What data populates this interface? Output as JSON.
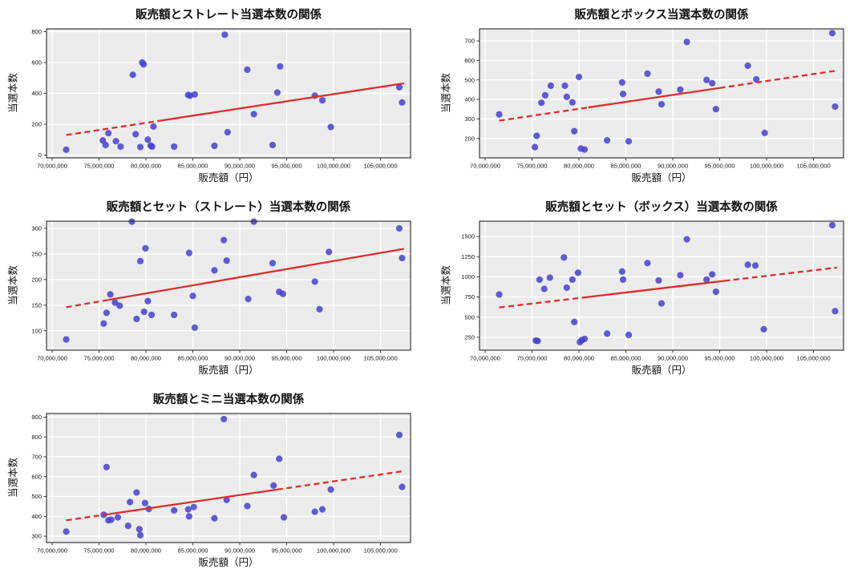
{
  "page": {
    "background": "#ffffff"
  },
  "colors": {
    "plot_bg": "#ebebeb",
    "grid": "#ffffff",
    "spine": "#262626",
    "tick_text": "#111111",
    "point": "#4640cf",
    "point_opacity": 0.85,
    "trend": "#e02b2b"
  },
  "shared": {
    "xlabel": "販売額（円）",
    "ylabel": "当選本数",
    "xlim": [
      69400000,
      108200000
    ],
    "x_ticks": [
      70000000,
      75000000,
      80000000,
      85000000,
      90000000,
      95000000,
      100000000,
      105000000
    ],
    "x_tick_labels": [
      "70,000,000",
      "75,000,000",
      "80,000,000",
      "85,000,000",
      "90,000,000",
      "95,000,000",
      "100,000,000",
      "105,000,000"
    ]
  },
  "chart_data": [
    {
      "type": "scatter",
      "title": "販売額とストレート当選本数の関係",
      "xlabel": "販売額（円）",
      "ylabel": "当選本数",
      "ylim": [
        -18,
        818
      ],
      "y_ticks": [
        0,
        200,
        400,
        600,
        800
      ],
      "trend": {
        "x0": 71500000,
        "y0": 130,
        "x1": 107500000,
        "y1": 465,
        "solid_from": 81500000,
        "solid_to": 107500000
      },
      "points": [
        [
          71500000,
          35
        ],
        [
          75400000,
          95
        ],
        [
          75700000,
          65
        ],
        [
          76000000,
          142
        ],
        [
          76800000,
          90
        ],
        [
          77300000,
          55
        ],
        [
          78600000,
          520
        ],
        [
          78900000,
          135
        ],
        [
          79400000,
          52
        ],
        [
          79600000,
          600
        ],
        [
          79750000,
          588
        ],
        [
          80200000,
          100
        ],
        [
          80500000,
          62
        ],
        [
          80650000,
          55
        ],
        [
          80800000,
          185
        ],
        [
          83000000,
          55
        ],
        [
          84500000,
          390
        ],
        [
          84700000,
          385
        ],
        [
          85200000,
          393
        ],
        [
          87300000,
          60
        ],
        [
          88400000,
          780
        ],
        [
          88700000,
          148
        ],
        [
          90800000,
          553
        ],
        [
          91500000,
          265
        ],
        [
          93500000,
          65
        ],
        [
          94000000,
          405
        ],
        [
          94300000,
          575
        ],
        [
          98000000,
          385
        ],
        [
          98800000,
          355
        ],
        [
          99700000,
          182
        ],
        [
          107000000,
          440
        ],
        [
          107300000,
          341
        ]
      ]
    },
    {
      "type": "scatter",
      "title": "販売額とボックス当選本数の関係",
      "xlabel": "販売額（円）",
      "ylabel": "当選本数",
      "ylim": [
        100,
        762
      ],
      "y_ticks": [
        200,
        300,
        400,
        500,
        600,
        700
      ],
      "trend": {
        "x0": 71500000,
        "y0": 291,
        "x1": 107500000,
        "y1": 548,
        "solid_from": 81000000,
        "solid_to": 95000000
      },
      "points": [
        [
          71500000,
          323
        ],
        [
          75300000,
          155
        ],
        [
          75500000,
          213
        ],
        [
          76000000,
          383
        ],
        [
          76400000,
          421
        ],
        [
          77000000,
          470
        ],
        [
          78500000,
          470
        ],
        [
          78700000,
          413
        ],
        [
          79300000,
          385
        ],
        [
          79500000,
          237
        ],
        [
          80000000,
          515
        ],
        [
          80200000,
          148
        ],
        [
          80600000,
          143
        ],
        [
          83000000,
          190
        ],
        [
          84600000,
          487
        ],
        [
          84700000,
          428
        ],
        [
          85300000,
          185
        ],
        [
          87300000,
          532
        ],
        [
          88500000,
          440
        ],
        [
          88800000,
          375
        ],
        [
          90800000,
          450
        ],
        [
          91500000,
          695
        ],
        [
          93600000,
          500
        ],
        [
          94200000,
          483
        ],
        [
          94600000,
          350
        ],
        [
          98000000,
          573
        ],
        [
          98900000,
          503
        ],
        [
          99800000,
          228
        ],
        [
          107000000,
          740
        ],
        [
          107300000,
          363
        ]
      ]
    },
    {
      "type": "scatter",
      "title": "販売額とセット（ストレート）当選本数の関係",
      "xlabel": "販売額（円）",
      "ylabel": "当選本数",
      "ylim": [
        62,
        314
      ],
      "y_ticks": [
        100,
        150,
        200,
        250,
        300
      ],
      "trend": {
        "x0": 71500000,
        "y0": 146,
        "x1": 107500000,
        "y1": 260,
        "solid_from": 76000000,
        "solid_to": 107500000
      },
      "points": [
        [
          71500000,
          83
        ],
        [
          75500000,
          114
        ],
        [
          75800000,
          135
        ],
        [
          76200000,
          171
        ],
        [
          76700000,
          155
        ],
        [
          77200000,
          149
        ],
        [
          78500000,
          313
        ],
        [
          79000000,
          123
        ],
        [
          79400000,
          236
        ],
        [
          79800000,
          137
        ],
        [
          79950000,
          261
        ],
        [
          80200000,
          158
        ],
        [
          80600000,
          131
        ],
        [
          83000000,
          131
        ],
        [
          84600000,
          252
        ],
        [
          85000000,
          168
        ],
        [
          85200000,
          106
        ],
        [
          87300000,
          218
        ],
        [
          88300000,
          277
        ],
        [
          88600000,
          237
        ],
        [
          90900000,
          162
        ],
        [
          91500000,
          313
        ],
        [
          93500000,
          232
        ],
        [
          94200000,
          176
        ],
        [
          94600000,
          172
        ],
        [
          98000000,
          196
        ],
        [
          98500000,
          142
        ],
        [
          99500000,
          254
        ],
        [
          107000000,
          300
        ],
        [
          107300000,
          242
        ]
      ]
    },
    {
      "type": "scatter",
      "title": "販売額とセット（ボックス）当選本数の関係",
      "xlabel": "販売額（円）",
      "ylabel": "当選本数",
      "ylim": [
        90,
        1690
      ],
      "y_ticks": [
        250,
        500,
        750,
        1000,
        1250,
        1500
      ],
      "trend": {
        "x0": 71500000,
        "y0": 620,
        "x1": 107500000,
        "y1": 1115,
        "solid_from": 80500000,
        "solid_to": 95500000
      },
      "points": [
        [
          71500000,
          780
        ],
        [
          75400000,
          210
        ],
        [
          75600000,
          205
        ],
        [
          75800000,
          965
        ],
        [
          76300000,
          850
        ],
        [
          76900000,
          990
        ],
        [
          78400000,
          1240
        ],
        [
          78700000,
          865
        ],
        [
          79300000,
          965
        ],
        [
          79500000,
          440
        ],
        [
          79900000,
          1050
        ],
        [
          80100000,
          190
        ],
        [
          80300000,
          215
        ],
        [
          80600000,
          230
        ],
        [
          83000000,
          295
        ],
        [
          84600000,
          1065
        ],
        [
          84700000,
          965
        ],
        [
          85300000,
          280
        ],
        [
          87300000,
          1170
        ],
        [
          88500000,
          955
        ],
        [
          88800000,
          670
        ],
        [
          90800000,
          1020
        ],
        [
          91500000,
          1465
        ],
        [
          93600000,
          965
        ],
        [
          94200000,
          1030
        ],
        [
          94600000,
          815
        ],
        [
          98000000,
          1150
        ],
        [
          98800000,
          1140
        ],
        [
          99700000,
          350
        ],
        [
          107000000,
          1640
        ],
        [
          107300000,
          575
        ]
      ]
    },
    {
      "type": "scatter",
      "title": "販売額とミニ当選本数の関係",
      "xlabel": "販売額（円）",
      "ylabel": "当選本数",
      "ylim": [
        268,
        918
      ],
      "y_ticks": [
        300,
        400,
        500,
        600,
        700,
        800,
        900
      ],
      "trend": {
        "x0": 71500000,
        "y0": 380,
        "x1": 107500000,
        "y1": 628,
        "solid_from": 76000000,
        "solid_to": 94000000
      },
      "points": [
        [
          71500000,
          323
        ],
        [
          75500000,
          408
        ],
        [
          75800000,
          648
        ],
        [
          76000000,
          380
        ],
        [
          76300000,
          383
        ],
        [
          77000000,
          395
        ],
        [
          78100000,
          352
        ],
        [
          78300000,
          472
        ],
        [
          79000000,
          520
        ],
        [
          79300000,
          335
        ],
        [
          79400000,
          305
        ],
        [
          79900000,
          467
        ],
        [
          80300000,
          437
        ],
        [
          83000000,
          430
        ],
        [
          84500000,
          435
        ],
        [
          84600000,
          400
        ],
        [
          85100000,
          447
        ],
        [
          87300000,
          390
        ],
        [
          88300000,
          890
        ],
        [
          88600000,
          483
        ],
        [
          90800000,
          452
        ],
        [
          91500000,
          608
        ],
        [
          93600000,
          555
        ],
        [
          94200000,
          690
        ],
        [
          94700000,
          395
        ],
        [
          98000000,
          423
        ],
        [
          98800000,
          435
        ],
        [
          99700000,
          535
        ],
        [
          107000000,
          810
        ],
        [
          107300000,
          548
        ]
      ]
    }
  ]
}
